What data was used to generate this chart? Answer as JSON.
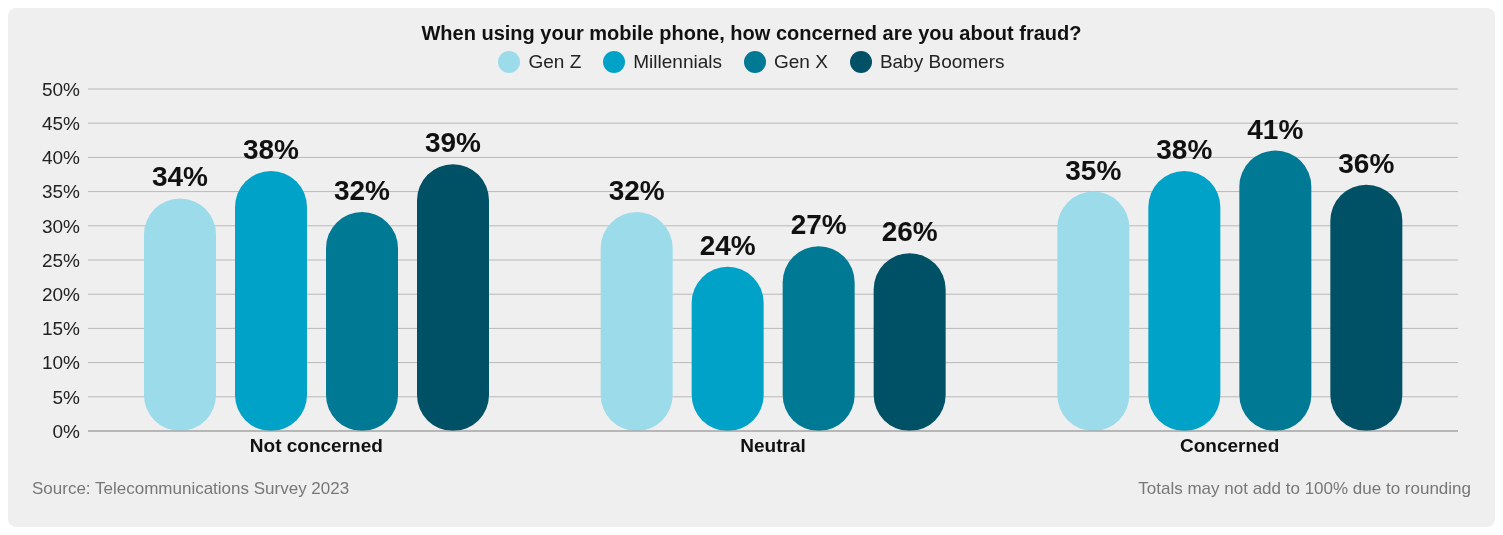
{
  "chart_data": {
    "type": "bar",
    "title": "When using your mobile phone, how concerned are you about fraud?",
    "categories": [
      "Not concerned",
      "Neutral",
      "Concerned"
    ],
    "series": [
      {
        "name": "Gen Z",
        "color": "#9cdcea",
        "values": [
          34,
          32,
          35
        ],
        "value_labels": [
          "34%",
          "32%",
          "35%"
        ]
      },
      {
        "name": "Millennials",
        "color": "#00a3c7",
        "values": [
          38,
          24,
          38
        ],
        "value_labels": [
          "38%",
          "24%",
          "38%"
        ]
      },
      {
        "name": "Gen X",
        "color": "#007a94",
        "values": [
          32,
          27,
          41
        ],
        "value_labels": [
          "32%",
          "27%",
          "41%"
        ]
      },
      {
        "name": "Baby Boomers",
        "color": "#005165",
        "values": [
          39,
          26,
          36
        ],
        "value_labels": [
          "39%",
          "26%",
          "36%"
        ]
      }
    ],
    "ylim": [
      0,
      50
    ],
    "yticks": [
      {
        "value": 0,
        "label": "0%"
      },
      {
        "value": 5,
        "label": "5%"
      },
      {
        "value": 10,
        "label": "10%"
      },
      {
        "value": 15,
        "label": "15%"
      },
      {
        "value": 20,
        "label": "20%"
      },
      {
        "value": 25,
        "label": "25%"
      },
      {
        "value": 30,
        "label": "30%"
      },
      {
        "value": 35,
        "label": "35%"
      },
      {
        "value": 40,
        "label": "40%"
      },
      {
        "value": 45,
        "label": "45%"
      },
      {
        "value": 50,
        "label": "50%"
      }
    ],
    "grid": "y",
    "legend": "top",
    "annotations": [
      "Source: Telecommunications Survey 2023",
      "Totals may not add to 100% due to rounding"
    ]
  }
}
